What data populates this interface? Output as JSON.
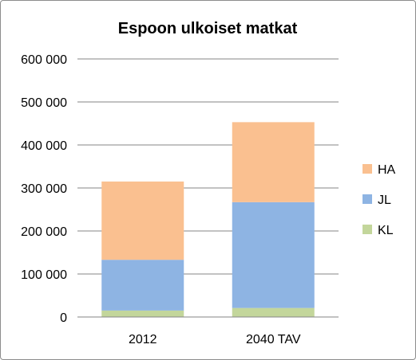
{
  "chart_data": {
    "type": "bar",
    "stacked": true,
    "title": "Espoon ulkoiset matkat",
    "categories": [
      "2012",
      "2040 TAV"
    ],
    "series": [
      {
        "name": "KL",
        "values": [
          15000,
          21000
        ],
        "color": "#c3d69b"
      },
      {
        "name": "JL",
        "values": [
          118000,
          246000
        ],
        "color": "#8eb4e3"
      },
      {
        "name": "HA",
        "values": [
          182000,
          186000
        ],
        "color": "#fac090"
      }
    ],
    "ylim": [
      0,
      600000
    ],
    "yticks": [
      0,
      100000,
      200000,
      300000,
      400000,
      500000,
      600000
    ],
    "ytick_labels": [
      "0",
      "100 000",
      "200 000",
      "300 000",
      "400 000",
      "500 000",
      "600 000"
    ],
    "grid": true,
    "legend_position": "right",
    "legend_order": [
      "HA",
      "JL",
      "KL"
    ]
  }
}
